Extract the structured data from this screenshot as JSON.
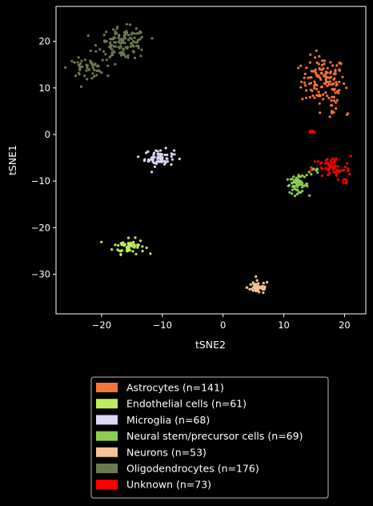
{
  "chart_data": {
    "type": "scatter",
    "xlabel": "tSNE2",
    "ylabel": "tSNE1",
    "xlim": [
      -27.5,
      23.5
    ],
    "ylim": [
      -38.5,
      27.5
    ],
    "xticks": [
      -20,
      -10,
      0,
      10,
      20
    ],
    "yticks": [
      -30,
      -20,
      -10,
      0,
      10,
      20
    ],
    "xtick_labels": [
      "−20",
      "−10",
      "0",
      "10",
      "20"
    ],
    "ytick_labels": [
      "−30",
      "−20",
      "−10",
      "0",
      "10",
      "20"
    ],
    "grid": false,
    "legend_position": "below",
    "series": [
      {
        "name": "Astrocytes (n=141)",
        "color": "#f4743b",
        "count": 141,
        "clusters": [
          {
            "cx": 16.5,
            "cy": 11.5,
            "sx": 1.8,
            "sy": 2.6,
            "n": 126
          },
          {
            "cx": 17.5,
            "cy": 6.5,
            "sx": 1.0,
            "sy": 1.6,
            "n": 13
          },
          {
            "cx": 20.6,
            "cy": 4.3,
            "sx": 0.2,
            "sy": 0.2,
            "n": 2
          }
        ]
      },
      {
        "name": "Endothelial cells (n=61)",
        "color": "#bdee5a",
        "count": 61,
        "clusters": [
          {
            "cx": -15.5,
            "cy": -24.0,
            "sx": 1.3,
            "sy": 0.8,
            "n": 61
          }
        ]
      },
      {
        "name": "Microglia (n=68)",
        "color": "#dcd6f7",
        "count": 68,
        "clusters": [
          {
            "cx": -10.5,
            "cy": -5.0,
            "sx": 1.2,
            "sy": 0.9,
            "n": 68
          }
        ]
      },
      {
        "name": "Neural stem/precursor cells (n=69)",
        "color": "#8ccc52",
        "count": 69,
        "clusters": [
          {
            "cx": 12.2,
            "cy": -10.8,
            "sx": 0.9,
            "sy": 0.9,
            "n": 58
          },
          {
            "cx": 14.8,
            "cy": -8.0,
            "sx": 0.7,
            "sy": 0.6,
            "n": 11
          }
        ]
      },
      {
        "name": "Neurons (n=53)",
        "color": "#f4c39a",
        "count": 53,
        "clusters": [
          {
            "cx": 5.8,
            "cy": -32.8,
            "sx": 0.9,
            "sy": 0.7,
            "n": 53
          }
        ]
      },
      {
        "name": "Oligodendrocytes (n=176)",
        "color": "#6b7a4f",
        "count": 176,
        "clusters": [
          {
            "cx": -16.5,
            "cy": 19.5,
            "sx": 2.0,
            "sy": 1.7,
            "n": 126
          },
          {
            "cx": -22.5,
            "cy": 14.3,
            "sx": 1.5,
            "sy": 1.0,
            "n": 50
          }
        ]
      },
      {
        "name": "Unknown (n=73)",
        "color": "#ff0000",
        "count": 73,
        "clusters": [
          {
            "cx": 17.8,
            "cy": -7.3,
            "sx": 1.6,
            "sy": 1.3,
            "n": 60
          },
          {
            "cx": 14.8,
            "cy": 0.6,
            "sx": 0.5,
            "sy": 0.15,
            "n": 7
          },
          {
            "cx": 20.3,
            "cy": -10.0,
            "sx": 0.3,
            "sy": 0.3,
            "n": 6
          }
        ]
      }
    ]
  }
}
